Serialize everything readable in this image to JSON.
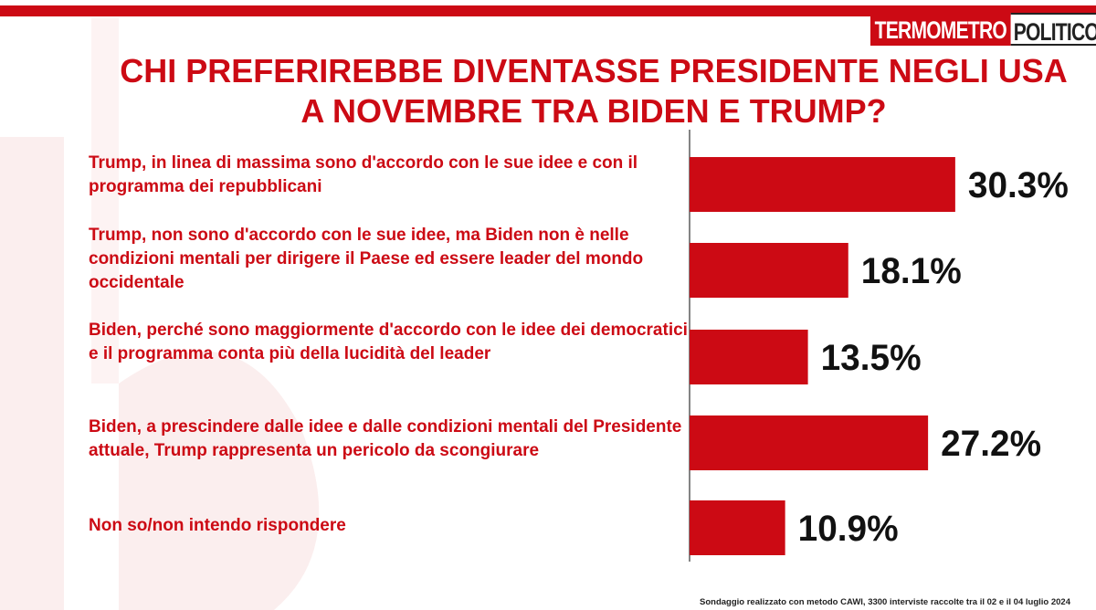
{
  "branding": {
    "logo_left": "TERMOMETRO",
    "logo_right": "POLITICO",
    "accent_color": "#cc0a14"
  },
  "chart_data": {
    "type": "bar",
    "orientation": "horizontal",
    "title": "CHI PREFERIREBBE DIVENTASSE PRESIDENTE NEGLI USA A NOVEMBRE TRA BIDEN E TRUMP?",
    "categories": [
      "Trump, in linea di massima sono d'accordo con le sue idee e con il programma dei repubblicani",
      "Trump, non sono d'accordo con le sue idee, ma Biden non è nelle condizioni mentali per dirigere il Paese ed essere leader del mondo occidentale",
      "Biden, perché sono maggiormente d'accordo con le idee dei democratici e il programma conta più della lucidità del leader",
      "Biden, a prescindere dalle idee e dalle condizioni mentali del Presidente attuale, Trump rappresenta un pericolo da scongiurare",
      "Non so/non intendo rispondere"
    ],
    "values": [
      30.3,
      18.1,
      13.5,
      27.2,
      10.9
    ],
    "value_labels": [
      "30.3%",
      "18.1%",
      "13.5%",
      "27.2%",
      "10.9%"
    ],
    "xlim": [
      0,
      40
    ],
    "bar_color": "#cc0a14",
    "grid": false,
    "legend": "none"
  },
  "footnote": "Sondaggio realizzato con metodo CAWI, 3300 interviste raccolte tra il 02 e il 04 luglio 2024"
}
